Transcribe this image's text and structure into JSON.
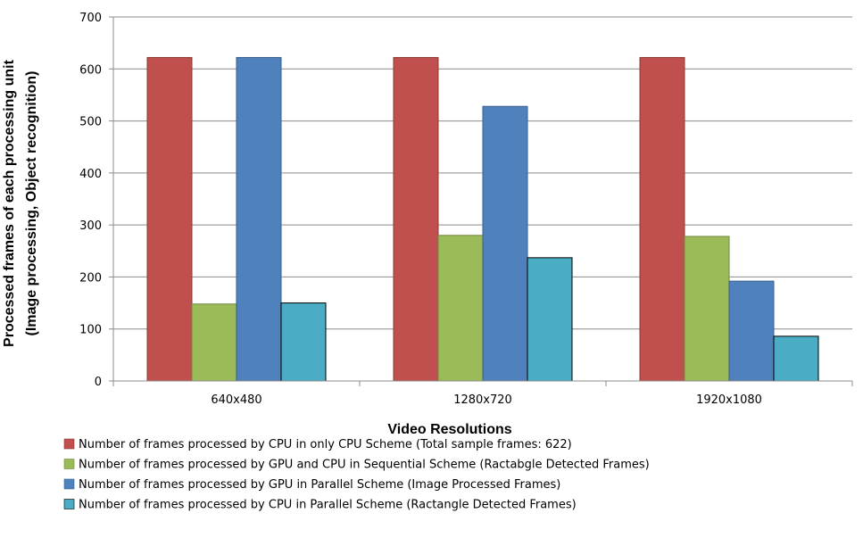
{
  "chart_data": {
    "type": "bar",
    "categories": [
      "640x480",
      "1280x720",
      "1920x1080"
    ],
    "series": [
      {
        "name": "Number of frames processed by CPU  in only CPU Scheme (Total sample frames: 622)",
        "values": [
          622,
          622,
          622
        ],
        "color": "#c0504d",
        "stroke": "#8c3836"
      },
      {
        "name": "Number of frames processed by GPU and CPU in Sequential Scheme (Ractabgle Detected Frames)",
        "values": [
          148,
          280,
          278
        ],
        "color": "#9bbb59",
        "stroke": "#71893f"
      },
      {
        "name": "Number of frames processed by GPU in Parallel Scheme (Image Processed Frames)",
        "values": [
          622,
          528,
          192
        ],
        "color": "#4f81bd",
        "stroke": "#385d8a"
      },
      {
        "name": "Number of frames processed by CPU  in Parallel Scheme (Ractangle Detected Frames)",
        "values": [
          150,
          237,
          86
        ],
        "color": "#4bacc6",
        "stroke": "#000000"
      }
    ],
    "xlabel": "Video Resolutions",
    "ylabel_lines": [
      "Processed frames of each processing unit",
      "(Image processing, Object recognition)"
    ],
    "ylim": [
      0,
      700
    ],
    "yticks": [
      0,
      100,
      200,
      300,
      400,
      500,
      600,
      700
    ],
    "grid": true,
    "legend_position": "bottom"
  }
}
